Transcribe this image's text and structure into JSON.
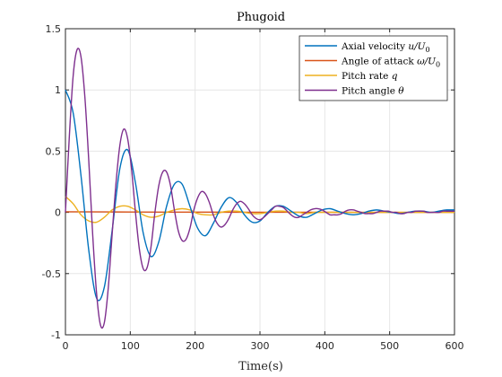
{
  "chart_data": {
    "type": "line",
    "title": "Phugoid",
    "xlabel": "Time(s)",
    "ylabel": "",
    "xlim": [
      0,
      600
    ],
    "ylim": [
      -1,
      1.5
    ],
    "xticks": [
      0,
      100,
      200,
      300,
      400,
      500,
      600
    ],
    "xtick_labels": [
      "0",
      "100",
      "200",
      "300",
      "400",
      "500",
      "600"
    ],
    "yticks": [
      -1,
      -0.5,
      0,
      0.5,
      1,
      1.5
    ],
    "ytick_labels": [
      "-1",
      "-0.5",
      "0",
      "0.5",
      "1",
      "1.5"
    ],
    "grid": true,
    "legend_position": "top-right",
    "series": [
      {
        "name": "Axial velocity u/U0",
        "legend_main": "Axial velocity ",
        "legend_math": "u/U",
        "legend_sub": "0",
        "color": "#0072BD",
        "x": [
          0,
          12,
          24,
          36,
          48,
          60,
          72,
          84,
          96,
          108,
          120,
          132,
          144,
          156,
          168,
          180,
          192,
          204,
          216,
          228,
          240,
          252,
          264,
          276,
          288,
          300,
          312,
          324,
          336,
          348,
          360,
          372,
          384,
          396,
          408,
          420,
          432,
          444,
          456,
          468,
          480,
          492,
          504,
          516,
          528,
          540,
          552,
          564,
          576,
          588,
          600
        ],
        "y": [
          1.0,
          0.81,
          0.3,
          -0.31,
          -0.7,
          -0.61,
          -0.15,
          0.36,
          0.51,
          0.24,
          -0.17,
          -0.36,
          -0.24,
          0.05,
          0.23,
          0.23,
          0.05,
          -0.13,
          -0.19,
          -0.09,
          0.04,
          0.12,
          0.08,
          -0.02,
          -0.08,
          -0.07,
          0.0,
          0.05,
          0.05,
          0.01,
          -0.03,
          -0.04,
          -0.01,
          0.02,
          0.03,
          0.01,
          -0.01,
          -0.02,
          -0.01,
          0.01,
          0.02,
          0.01,
          0.0,
          -0.01,
          0.0,
          0.01,
          0.01,
          0.0,
          0.01,
          0.02,
          0.02
        ]
      },
      {
        "name": "Angle of attack ω/U0",
        "legend_main": "Angle of attack ",
        "legend_math": "ω/U",
        "legend_sub": "0",
        "color": "#D95319",
        "x": [
          0,
          100,
          200,
          300,
          400,
          500,
          600
        ],
        "y": [
          0.005,
          0.003,
          0.002,
          0.001,
          0.001,
          0.0,
          0.0
        ]
      },
      {
        "name": "Pitch rate q",
        "legend_main": "Pitch rate ",
        "legend_math": "q",
        "legend_sub": "",
        "color": "#EDB120",
        "x": [
          0,
          12,
          24,
          36,
          48,
          60,
          72,
          84,
          96,
          108,
          120,
          132,
          144,
          156,
          168,
          180,
          192,
          204,
          216,
          228,
          240,
          252,
          264,
          276,
          288,
          300,
          312,
          324,
          336,
          348,
          360,
          372,
          384,
          396,
          408,
          420,
          432,
          444,
          456,
          468,
          480,
          492,
          504,
          516,
          528,
          540,
          552,
          564,
          576,
          588,
          600
        ],
        "y": [
          0.13,
          0.07,
          -0.02,
          -0.07,
          -0.08,
          -0.04,
          0.02,
          0.05,
          0.05,
          0.02,
          -0.02,
          -0.04,
          -0.03,
          0.0,
          0.02,
          0.03,
          0.02,
          -0.01,
          -0.02,
          -0.02,
          0.0,
          0.01,
          0.01,
          0.0,
          -0.01,
          -0.01,
          0.0,
          0.01,
          0.01,
          0.0,
          0.0,
          -0.01,
          0.0,
          0.0,
          0.0,
          0.0,
          0.0,
          0.0,
          0.0,
          0.0,
          0.0,
          0.0,
          0.0,
          0.0,
          0.0,
          0.0,
          0.0,
          0.0,
          0.0,
          0.0,
          0.0
        ]
      },
      {
        "name": "Pitch angle θ",
        "legend_main": "Pitch angle ",
        "legend_math": "θ",
        "legend_sub": "",
        "color": "#7E2F8E",
        "x": [
          0,
          6,
          12,
          18,
          24,
          30,
          36,
          42,
          48,
          54,
          60,
          66,
          72,
          78,
          84,
          90,
          96,
          102,
          108,
          114,
          120,
          126,
          132,
          138,
          144,
          150,
          156,
          162,
          168,
          174,
          180,
          186,
          192,
          198,
          204,
          210,
          216,
          222,
          228,
          234,
          240,
          246,
          252,
          258,
          264,
          270,
          276,
          282,
          288,
          294,
          300,
          306,
          312,
          318,
          324,
          330,
          336,
          342,
          348,
          354,
          360,
          366,
          372,
          378,
          384,
          390,
          396,
          402,
          408,
          414,
          420,
          426,
          432,
          438,
          444,
          450,
          456,
          462,
          468,
          474,
          480,
          486,
          492,
          498,
          504,
          510,
          516,
          522,
          528,
          534,
          540,
          546,
          552,
          558,
          564,
          570,
          576,
          582,
          588,
          594,
          600
        ],
        "y": [
          0.0,
          0.62,
          1.12,
          1.33,
          1.27,
          0.94,
          0.42,
          -0.18,
          -0.66,
          -0.92,
          -0.9,
          -0.62,
          -0.18,
          0.24,
          0.55,
          0.68,
          0.6,
          0.35,
          0.0,
          -0.3,
          -0.46,
          -0.45,
          -0.28,
          0.0,
          0.22,
          0.33,
          0.33,
          0.22,
          0.02,
          -0.15,
          -0.23,
          -0.22,
          -0.13,
          0.02,
          0.12,
          0.17,
          0.15,
          0.08,
          -0.02,
          -0.09,
          -0.12,
          -0.1,
          -0.05,
          0.02,
          0.07,
          0.09,
          0.07,
          0.03,
          -0.02,
          -0.05,
          -0.06,
          -0.04,
          -0.01,
          0.02,
          0.05,
          0.05,
          0.04,
          0.01,
          -0.02,
          -0.04,
          -0.04,
          -0.02,
          0.0,
          0.02,
          0.03,
          0.03,
          0.02,
          0.0,
          -0.02,
          -0.02,
          -0.02,
          -0.01,
          0.01,
          0.02,
          0.02,
          0.01,
          0.0,
          -0.01,
          -0.01,
          -0.01,
          0.0,
          0.01,
          0.01,
          0.01,
          0.0,
          0.0,
          -0.01,
          -0.01,
          0.0,
          0.0,
          0.01,
          0.01,
          0.01,
          0.0,
          0.0,
          0.0,
          0.0,
          0.01,
          0.01,
          0.01,
          0.01
        ]
      }
    ]
  }
}
